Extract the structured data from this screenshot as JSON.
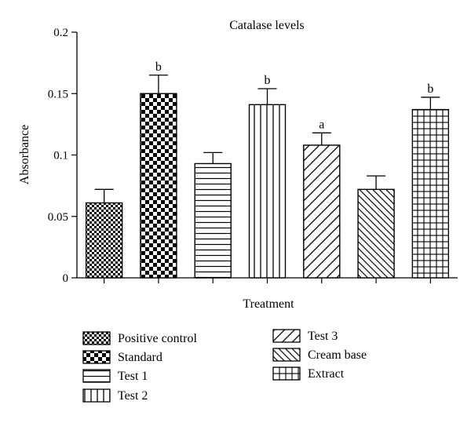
{
  "chart_data": {
    "type": "bar",
    "title": "Catalase levels",
    "xlabel": "Treatment",
    "ylabel": "Absorbance",
    "ylim": [
      0,
      0.2
    ],
    "yticks": [
      0,
      0.05,
      0.1,
      0.15,
      0.2
    ],
    "ytick_labels": [
      "0",
      "0.05",
      "0.1",
      "0.15",
      "0.2"
    ],
    "grid": false,
    "legend_position": "bottom",
    "categories": [
      "Positive control",
      "Standard",
      "Test 1",
      "Test 2",
      "Test 3",
      "Cream base",
      "Extract"
    ],
    "values": [
      0.061,
      0.15,
      0.093,
      0.141,
      0.108,
      0.072,
      0.137
    ],
    "errors": [
      0.011,
      0.015,
      0.009,
      0.013,
      0.01,
      0.011,
      0.01
    ],
    "annotations": [
      "",
      "b",
      "",
      "b",
      "a",
      "",
      "b"
    ],
    "patterns": [
      "small-checker",
      "large-checker",
      "horizontal-lines",
      "vertical-lines",
      "diagonal-wide",
      "diagonal-dense",
      "grid"
    ]
  }
}
